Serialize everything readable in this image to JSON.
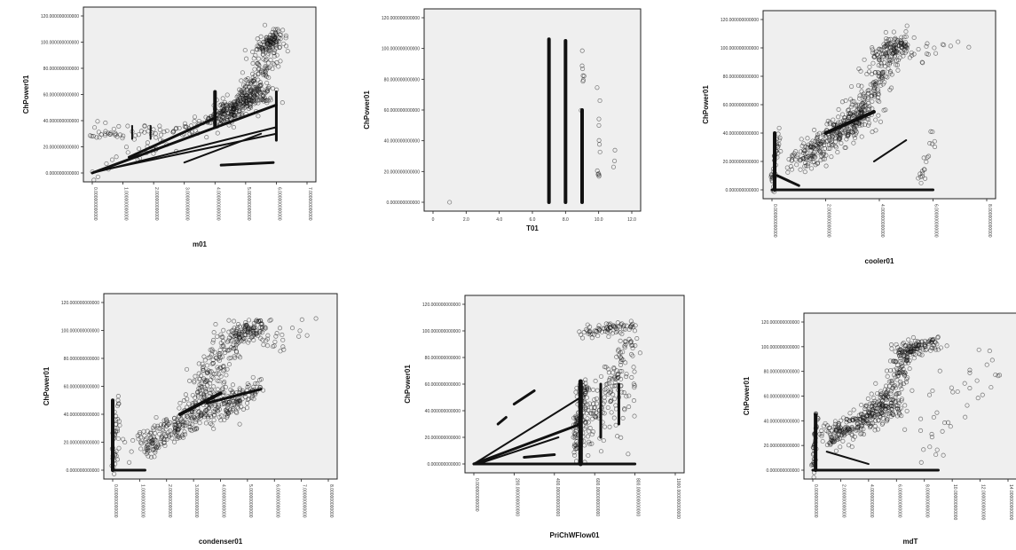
{
  "chart_data": [
    {
      "type": "scatter",
      "id": "p1",
      "xlabel": "m01",
      "ylabel": "ChPower01",
      "ylim": [
        0,
        120
      ],
      "xlim": [
        0,
        7
      ],
      "y_ticks": [
        0,
        20,
        40,
        60,
        80,
        100,
        120
      ],
      "y_tick_labels": [
        "0.000000000000",
        "20.000000000000",
        "40.000000000000",
        "60.000000000000",
        "80.000000000000",
        "100.000000000000",
        "120.000000000000"
      ],
      "x_ticks": [
        0,
        1,
        2,
        3,
        4,
        5,
        6,
        7
      ],
      "x_tick_labels": [
        "0.000000000000",
        "1.000000000000",
        "2.000000000000",
        "3.000000000000",
        "4.000000000000",
        "5.000000000000",
        "6.000000000000",
        "7.000000000000"
      ],
      "clusters": [
        {
          "x": [
            4,
            5.5
          ],
          "y": [
            40,
            62
          ],
          "n": 260,
          "jitter": [
            0.25,
            3
          ]
        },
        {
          "x": [
            5,
            6
          ],
          "y": [
            55,
            105
          ],
          "n": 150,
          "jitter": [
            0.25,
            4
          ]
        },
        {
          "x": [
            0,
            6
          ],
          "y": [
            0,
            60
          ],
          "n": 60,
          "jitter": [
            0.3,
            5
          ]
        },
        {
          "x": [
            0,
            3.5
          ],
          "y": [
            30,
            35
          ],
          "n": 60,
          "jitter": [
            0.2,
            3
          ]
        },
        {
          "x": [
            5.5,
            6
          ],
          "y": [
            95,
            105
          ],
          "n": 70,
          "jitter": [
            0.1,
            3
          ]
        }
      ],
      "segments": [
        {
          "x": [
            0,
            6
          ],
          "y": [
            0,
            52
          ],
          "w": 3
        },
        {
          "x": [
            1.2,
            4
          ],
          "y": [
            12,
            42
          ],
          "w": 3
        },
        {
          "x": [
            0,
            6
          ],
          "y": [
            0,
            35
          ],
          "w": 2
        },
        {
          "x": [
            0.3,
            6
          ],
          "y": [
            2,
            30
          ],
          "w": 2
        },
        {
          "x": [
            3,
            5.5
          ],
          "y": [
            8,
            30
          ],
          "w": 2
        },
        {
          "x": [
            4.2,
            5.9
          ],
          "y": [
            6,
            8
          ],
          "w": 3
        },
        {
          "x": [
            1.3,
            1.3
          ],
          "y": [
            26,
            36
          ],
          "w": 2
        },
        {
          "x": [
            1.9,
            1.9
          ],
          "y": [
            26,
            36
          ],
          "w": 2
        },
        {
          "x": [
            6,
            6
          ],
          "y": [
            25,
            62
          ],
          "w": 3
        },
        {
          "x": [
            4,
            4
          ],
          "y": [
            35,
            62
          ],
          "w": 4
        }
      ]
    },
    {
      "type": "scatter",
      "id": "p2",
      "xlabel": "T01",
      "ylabel": "ChPower01",
      "ylim": [
        0,
        120
      ],
      "xlim": [
        0,
        12
      ],
      "y_ticks": [
        0,
        20,
        40,
        60,
        80,
        100,
        120
      ],
      "y_tick_labels": [
        "0.000000000000",
        "20.000000000000",
        "40.000000000000",
        "60.000000000000",
        "80.000000000000",
        "100.000000000000",
        "120.000000000000"
      ],
      "x_ticks": [
        0,
        2,
        4,
        6,
        8,
        10,
        12
      ],
      "x_tick_labels": [
        "0",
        "2.0",
        "4.0",
        "6.0",
        "8.0",
        "10.0",
        "12.0"
      ],
      "clusters": [
        {
          "x": [
            10,
            10
          ],
          "y": [
            0,
            75
          ],
          "n": 12,
          "jitter": [
            0.05,
            2
          ]
        },
        {
          "x": [
            11,
            11
          ],
          "y": [
            20,
            35
          ],
          "n": 3,
          "jitter": [
            0.05,
            2
          ]
        },
        {
          "x": [
            9,
            9
          ],
          "y": [
            60,
            100
          ],
          "n": 8,
          "jitter": [
            0.05,
            2
          ]
        }
      ],
      "points": [
        [
          1,
          0
        ]
      ],
      "segments": [
        {
          "x": [
            7,
            7
          ],
          "y": [
            0,
            106
          ],
          "w": 4
        },
        {
          "x": [
            8,
            8
          ],
          "y": [
            0,
            105
          ],
          "w": 4
        },
        {
          "x": [
            9,
            9
          ],
          "y": [
            0,
            60
          ],
          "w": 4
        }
      ]
    },
    {
      "type": "scatter",
      "id": "p3",
      "xlabel": "cooler01",
      "ylabel": "ChPower01",
      "ylim": [
        0,
        120
      ],
      "xlim": [
        0,
        8
      ],
      "y_ticks": [
        0,
        20,
        40,
        60,
        80,
        100,
        120
      ],
      "y_tick_labels": [
        "0.000000000000",
        "20.000000000000",
        "40.000000000000",
        "60.000000000000",
        "80.000000000000",
        "100.000000000000",
        "120.000000000000"
      ],
      "x_ticks": [
        0,
        2,
        4,
        6,
        8
      ],
      "x_tick_labels": [
        "0.000000000000",
        "2.000000000000",
        "4.000000000000",
        "6.000000000000",
        "8.000000000000"
      ],
      "clusters": [
        {
          "x": [
            1,
            3.5
          ],
          "y": [
            20,
            55
          ],
          "n": 300,
          "jitter": [
            0.3,
            5
          ]
        },
        {
          "x": [
            3,
            4.5
          ],
          "y": [
            45,
            100
          ],
          "n": 180,
          "jitter": [
            0.3,
            6
          ]
        },
        {
          "x": [
            4,
            5
          ],
          "y": [
            95,
            105
          ],
          "n": 90,
          "jitter": [
            0.25,
            3
          ]
        },
        {
          "x": [
            5,
            6.8
          ],
          "y": [
            95,
            100
          ],
          "n": 20,
          "jitter": [
            0.3,
            4
          ]
        },
        {
          "x": [
            0,
            0.3
          ],
          "y": [
            0,
            45
          ],
          "n": 40,
          "jitter": [
            0.05,
            3
          ]
        },
        {
          "x": [
            5.5,
            6
          ],
          "y": [
            2,
            40
          ],
          "n": 20,
          "jitter": [
            0.1,
            3
          ]
        }
      ],
      "segments": [
        {
          "x": [
            0,
            6
          ],
          "y": [
            0,
            0
          ],
          "w": 3
        },
        {
          "x": [
            0.1,
            0.1
          ],
          "y": [
            0,
            40
          ],
          "w": 4
        },
        {
          "x": [
            0.2,
            1
          ],
          "y": [
            10,
            3
          ],
          "w": 3
        },
        {
          "x": [
            2,
            3.8
          ],
          "y": [
            40,
            55
          ],
          "w": 4
        },
        {
          "x": [
            3.8,
            5
          ],
          "y": [
            20,
            35
          ],
          "w": 2
        }
      ]
    },
    {
      "type": "scatter",
      "id": "p4",
      "xlabel": "condenser01",
      "ylabel": "ChPower01",
      "ylim": [
        0,
        120
      ],
      "xlim": [
        0,
        8
      ],
      "y_ticks": [
        0,
        20,
        40,
        60,
        80,
        100,
        120
      ],
      "y_tick_labels": [
        "0.000000000000",
        "20.000000000000",
        "40.000000000000",
        "60.000000000000",
        "80.000000000000",
        "100.000000000000",
        "120.000000000000"
      ],
      "x_ticks": [
        0,
        1,
        2,
        3,
        4,
        5,
        6,
        7,
        8
      ],
      "x_tick_labels": [
        "0.000000000000",
        "1.000000000000",
        "2.000000000000",
        "3.000000000000",
        "4.000000000000",
        "5.000000000000",
        "6.000000000000",
        "7.000000000000",
        "8.000000000000"
      ],
      "clusters": [
        {
          "x": [
            1,
            4.5
          ],
          "y": [
            15,
            55
          ],
          "n": 300,
          "jitter": [
            0.3,
            5
          ]
        },
        {
          "x": [
            3,
            4.5
          ],
          "y": [
            50,
            100
          ],
          "n": 160,
          "jitter": [
            0.3,
            5
          ]
        },
        {
          "x": [
            4.5,
            5.5
          ],
          "y": [
            95,
            105
          ],
          "n": 100,
          "jitter": [
            0.3,
            3
          ]
        },
        {
          "x": [
            5.5,
            7
          ],
          "y": [
            90,
            102
          ],
          "n": 25,
          "jitter": [
            0.3,
            5
          ]
        },
        {
          "x": [
            4,
            5.5
          ],
          "y": [
            40,
            60
          ],
          "n": 80,
          "jitter": [
            0.2,
            4
          ]
        },
        {
          "x": [
            0,
            0.2
          ],
          "y": [
            0,
            50
          ],
          "n": 40,
          "jitter": [
            0.05,
            4
          ]
        }
      ],
      "segments": [
        {
          "x": [
            0,
            0
          ],
          "y": [
            0,
            50
          ],
          "w": 4
        },
        {
          "x": [
            0,
            1.2
          ],
          "y": [
            0,
            0
          ],
          "w": 3
        },
        {
          "x": [
            2.5,
            4
          ],
          "y": [
            40,
            55
          ],
          "w": 4
        },
        {
          "x": [
            3.5,
            5.5
          ],
          "y": [
            48,
            58
          ],
          "w": 3
        }
      ]
    },
    {
      "type": "scatter",
      "id": "p5",
      "xlabel": "PriChWFlow01",
      "ylabel": "ChPower01",
      "ylim": [
        0,
        120
      ],
      "xlim": [
        0,
        1000
      ],
      "y_ticks": [
        0,
        20,
        40,
        60,
        80,
        100,
        120
      ],
      "y_tick_labels": [
        "0.000000000000",
        "20.000000000000",
        "40.000000000000",
        "60.000000000000",
        "80.000000000000",
        "100.000000000000",
        "120.000000000000"
      ],
      "x_ticks": [
        0,
        200,
        400,
        600,
        800,
        1000
      ],
      "x_tick_labels": [
        "0.000000000000",
        "200.000000000000",
        "400.000000000000",
        "600.000000000000",
        "800.000000000000",
        "1000.000000000000"
      ],
      "clusters": [
        {
          "x": [
            500,
            550
          ],
          "y": [
            5,
            60
          ],
          "n": 120,
          "jitter": [
            15,
            4
          ]
        },
        {
          "x": [
            560,
            780
          ],
          "y": [
            20,
            95
          ],
          "n": 140,
          "jitter": [
            30,
            10
          ]
        },
        {
          "x": [
            560,
            780
          ],
          "y": [
            98,
            104
          ],
          "n": 70,
          "jitter": [
            30,
            2
          ]
        },
        {
          "x": [
            700,
            800
          ],
          "y": [
            20,
            80
          ],
          "n": 30,
          "jitter": [
            30,
            10
          ]
        }
      ],
      "segments": [
        {
          "x": [
            0,
            800
          ],
          "y": [
            0,
            0
          ],
          "w": 3
        },
        {
          "x": [
            0,
            530
          ],
          "y": [
            0,
            30
          ],
          "w": 3
        },
        {
          "x": [
            0,
            530
          ],
          "y": [
            0,
            50
          ],
          "w": 2
        },
        {
          "x": [
            20,
            420
          ],
          "y": [
            0,
            20
          ],
          "w": 2
        },
        {
          "x": [
            250,
            400
          ],
          "y": [
            5,
            7
          ],
          "w": 3
        },
        {
          "x": [
            200,
            300
          ],
          "y": [
            45,
            55
          ],
          "w": 3
        },
        {
          "x": [
            120,
            160
          ],
          "y": [
            30,
            35
          ],
          "w": 3
        },
        {
          "x": [
            530,
            530
          ],
          "y": [
            0,
            62
          ],
          "w": 5
        },
        {
          "x": [
            630,
            630
          ],
          "y": [
            20,
            60
          ],
          "w": 3
        },
        {
          "x": [
            720,
            720
          ],
          "y": [
            30,
            60
          ],
          "w": 3
        }
      ]
    },
    {
      "type": "scatter",
      "id": "p6",
      "xlabel": "mdT",
      "ylabel": "ChPower01",
      "ylim": [
        0,
        120
      ],
      "xlim": [
        0,
        14
      ],
      "y_ticks": [
        0,
        20,
        40,
        60,
        80,
        100,
        120
      ],
      "y_tick_labels": [
        "0.000000000000",
        "20.000000000000",
        "40.000000000000",
        "60.000000000000",
        "80.000000000000",
        "100.000000000000",
        "120.000000000000"
      ],
      "x_ticks": [
        0,
        2,
        4,
        6,
        8,
        10,
        12,
        14
      ],
      "x_tick_labels": [
        "0.000000000000",
        "2.000000000000",
        "4.000000000000",
        "6.000000000000",
        "8.000000000000",
        "10.000000000000",
        "12.000000000000",
        "14.000000000000"
      ],
      "clusters": [
        {
          "x": [
            1,
            6
          ],
          "y": [
            25,
            55
          ],
          "n": 280,
          "jitter": [
            0.5,
            5
          ]
        },
        {
          "x": [
            5,
            7
          ],
          "y": [
            50,
            100
          ],
          "n": 150,
          "jitter": [
            0.4,
            6
          ]
        },
        {
          "x": [
            6,
            9
          ],
          "y": [
            95,
            104
          ],
          "n": 100,
          "jitter": [
            0.5,
            3
          ]
        },
        {
          "x": [
            7,
            13
          ],
          "y": [
            10,
            100
          ],
          "n": 40,
          "jitter": [
            1,
            12
          ]
        },
        {
          "x": [
            0,
            0.3
          ],
          "y": [
            0,
            45
          ],
          "n": 40,
          "jitter": [
            0.05,
            4
          ]
        }
      ],
      "segments": [
        {
          "x": [
            0,
            9
          ],
          "y": [
            0,
            0
          ],
          "w": 3
        },
        {
          "x": [
            0.2,
            0.2
          ],
          "y": [
            0,
            45
          ],
          "w": 4
        },
        {
          "x": [
            1,
            4
          ],
          "y": [
            15,
            5
          ],
          "w": 2
        }
      ]
    }
  ]
}
